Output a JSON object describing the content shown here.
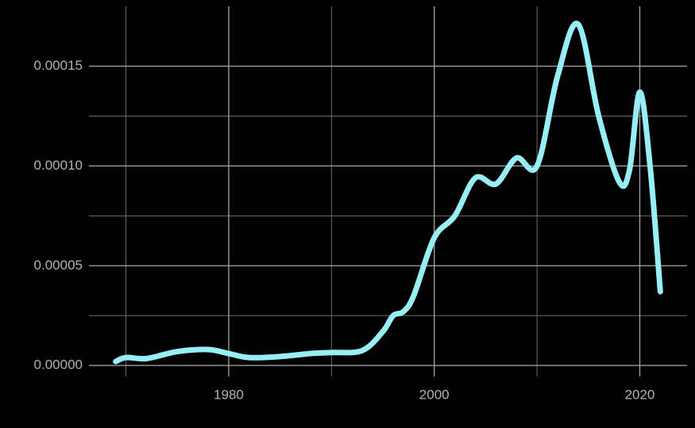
{
  "chart_data": {
    "type": "line",
    "x": [
      1969,
      1970,
      1972,
      1975,
      1978,
      1980,
      1982,
      1985,
      1988,
      1990,
      1993,
      1995,
      1996,
      1997,
      1998,
      2000,
      2002,
      2004,
      2006,
      2008,
      2010,
      2012,
      2014,
      2016,
      2018,
      2019,
      2020,
      2021,
      2022
    ],
    "series": [
      {
        "color": "#98eef5",
        "values": [
          2e-06,
          4e-06,
          3.5e-06,
          7e-06,
          8e-06,
          6e-06,
          4e-06,
          4.5e-06,
          6e-06,
          6.5e-06,
          7.5e-06,
          1.7e-05,
          2.5e-05,
          2.7e-05,
          3.5e-05,
          6.4e-05,
          7.5e-05,
          9.4e-05,
          9.1e-05,
          0.000104,
          0.0001,
          0.000145,
          0.000171,
          0.000125,
          9.2e-05,
          9.8e-05,
          0.000137,
          0.0001,
          3.7e-05
        ]
      }
    ],
    "xlim": [
      1966.4,
      2024.6
    ],
    "ylim": [
      -5.5e-06,
      0.00018
    ],
    "xticks": [
      1980,
      2000,
      2020
    ],
    "yticks": [
      {
        "value": 0,
        "label": "0.00000"
      },
      {
        "value": 5e-05,
        "label": "0.00005"
      },
      {
        "value": 0.0001,
        "label": "0.00010"
      },
      {
        "value": 0.00015,
        "label": "0.00015"
      }
    ],
    "x_minor_grid": [
      1970,
      1990,
      2010
    ],
    "y_minor_grid": [
      2.5e-05,
      7.5e-05,
      0.000125
    ],
    "grid": true
  }
}
